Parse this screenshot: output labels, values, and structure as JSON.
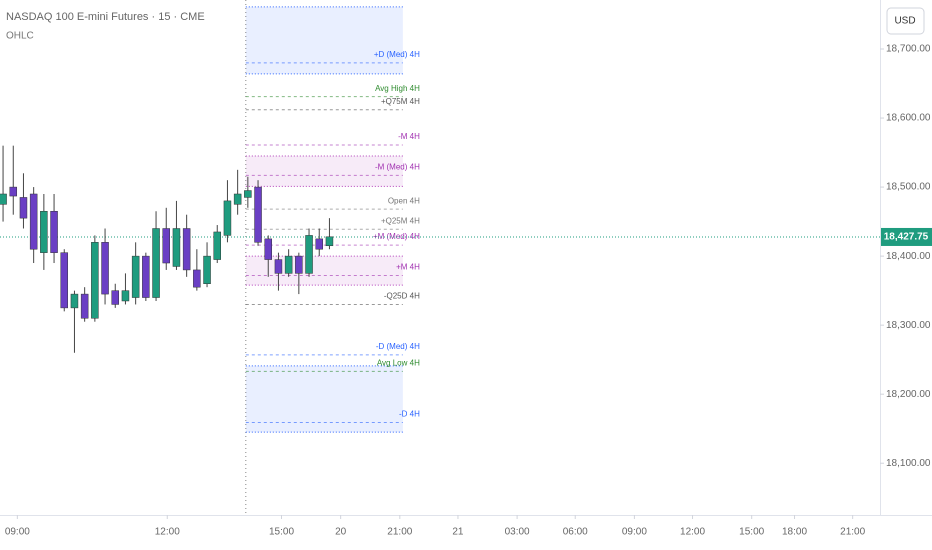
{
  "chart_data": {
    "type": "candlestick",
    "title": "NASDAQ 100 E-mini Futures · 15 · CME",
    "subtitle": "OHLC",
    "currency": "USD",
    "up_color": "#1f9c7f",
    "down_color": "#6a3fc4",
    "open": [
      18475,
      18500,
      18485,
      18490,
      18405,
      18465,
      18405,
      18325,
      18345,
      18310,
      18420,
      18350,
      18335,
      18340,
      18400,
      18340,
      18440,
      18385,
      18440,
      18380,
      18360,
      18395,
      18430,
      18475,
      18485,
      18500,
      18425,
      18395,
      18375,
      18400,
      18375,
      18425,
      18415
    ],
    "high": [
      18560,
      18560,
      18520,
      18500,
      18490,
      18490,
      18410,
      18350,
      18355,
      18430,
      18440,
      18360,
      18375,
      18420,
      18405,
      18465,
      18470,
      18480,
      18460,
      18410,
      18420,
      18445,
      18510,
      18525,
      18515,
      18510,
      18430,
      18405,
      18410,
      18405,
      18440,
      18440,
      18455
    ],
    "low": [
      18450,
      18460,
      18440,
      18390,
      18380,
      18390,
      18320,
      18260,
      18305,
      18305,
      18330,
      18325,
      18330,
      18330,
      18335,
      18335,
      18380,
      18380,
      18370,
      18350,
      18355,
      18390,
      18420,
      18460,
      18470,
      18415,
      18370,
      18350,
      18370,
      18345,
      18370,
      18400,
      18410
    ],
    "close": [
      18490,
      18487,
      18455,
      18410,
      18465,
      18405,
      18325,
      18345,
      18310,
      18420,
      18345,
      18330,
      18350,
      18400,
      18340,
      18440,
      18390,
      18440,
      18380,
      18355,
      18400,
      18435,
      18480,
      18490,
      18495,
      18420,
      18395,
      18375,
      18400,
      18375,
      18430,
      18410,
      18428
    ],
    "xlim": [
      -0.3,
      85.98
    ],
    "xticks": [
      {
        "value": 1.4,
        "label": "09:00"
      },
      {
        "value": 16.1,
        "label": "12:00"
      },
      {
        "value": 27.3,
        "label": "15:00"
      },
      {
        "value": 33.1,
        "label": "20"
      },
      {
        "value": 38.9,
        "label": "21:00"
      },
      {
        "value": 44.6,
        "label": "21"
      },
      {
        "value": 50.4,
        "label": "03:00"
      },
      {
        "value": 56.1,
        "label": "06:00"
      },
      {
        "value": 61.9,
        "label": "09:00"
      },
      {
        "value": 67.6,
        "label": "12:00"
      },
      {
        "value": 73.4,
        "label": "15:00"
      },
      {
        "value": 77.6,
        "label": "18:00"
      },
      {
        "value": 83.3,
        "label": "21:00"
      }
    ],
    "ylim": [
      18025,
      18771
    ],
    "yticks": [
      {
        "value": 18100,
        "label": "18,100.00"
      },
      {
        "value": 18200,
        "label": "18,200.00"
      },
      {
        "value": 18300,
        "label": "18,300.00"
      },
      {
        "value": 18400,
        "label": "18,400.00"
      },
      {
        "value": 18500,
        "label": "18,500.00"
      },
      {
        "value": 18600,
        "label": "18,600.00"
      },
      {
        "value": 18700,
        "label": "18,700.00"
      }
    ],
    "last_price": {
      "value": 18427.75,
      "label": "18,427.75"
    },
    "level_xlim": [
      23.8,
      39.2
    ],
    "zones": [
      {
        "top": 18761,
        "bottom": 18664,
        "color": "#2962ff"
      },
      {
        "top": 18545,
        "bottom": 18501,
        "color": "#b03ab8"
      },
      {
        "top": 18400,
        "bottom": 18358,
        "color": "#b03ab8"
      },
      {
        "top": 18241,
        "bottom": 18145,
        "color": "#2962ff"
      }
    ],
    "levels": [
      {
        "name": "+D (Med) 4H",
        "value": 18680,
        "color": "#2962ff"
      },
      {
        "name": "Avg High 4H",
        "value": 18631,
        "color": "#2e8b2e"
      },
      {
        "name": "+Q75M 4H",
        "value": 18612,
        "color": "#555555"
      },
      {
        "name": "-M 4H",
        "value": 18561,
        "color": "#a030b0"
      },
      {
        "name": "-M (Med) 4H",
        "value": 18517,
        "color": "#a030b0"
      },
      {
        "name": "Open 4H",
        "value": 18468,
        "color": "#777777"
      },
      {
        "name": "+Q25M 4H",
        "value": 18439,
        "color": "#777777"
      },
      {
        "name": "+M (Med) 4H",
        "value": 18416,
        "color": "#a030b0"
      },
      {
        "name": "+M 4H",
        "value": 18372,
        "color": "#a030b0"
      },
      {
        "name": "-Q25D 4H",
        "value": 18330,
        "color": "#555555"
      },
      {
        "name": "-D (Med) 4H",
        "value": 18257,
        "color": "#2962ff"
      },
      {
        "name": "Avg Low 4H",
        "value": 18233,
        "color": "#2e8b2e"
      },
      {
        "name": "-D 4H",
        "value": 18159,
        "color": "#2962ff"
      }
    ]
  }
}
